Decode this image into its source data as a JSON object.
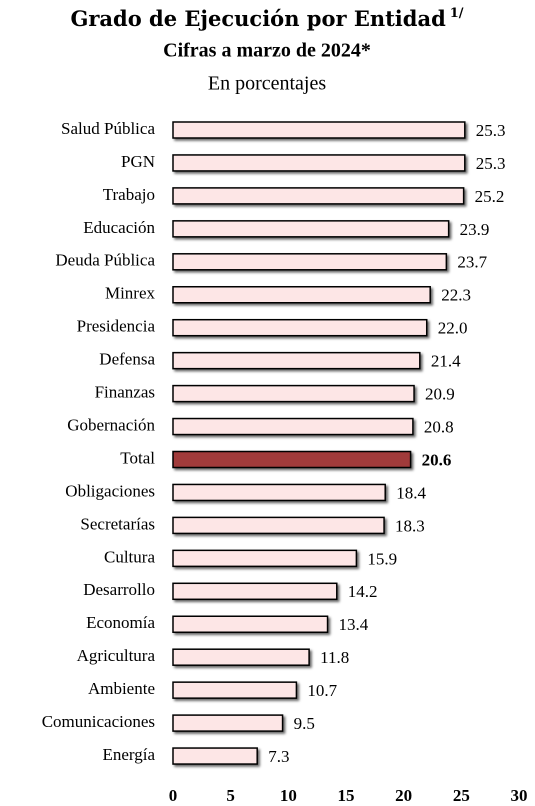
{
  "chart_data": {
    "type": "barh",
    "title": "Grado de Ejecución por Entidad",
    "title_note": "1/",
    "subtitle": "Cifras a marzo de 2024*",
    "unit_label": "En porcentajes",
    "categories": [
      "Salud Pública",
      "PGN",
      "Trabajo",
      "Educación",
      "Deuda Pública",
      "Minrex",
      "Presidencia",
      "Defensa",
      "Finanzas",
      "Gobernación",
      "Total",
      "Obligaciones",
      "Secretarías",
      "Cultura",
      "Desarrollo",
      "Economía",
      "Agricultura",
      "Ambiente",
      "Comunicaciones",
      "Energía"
    ],
    "values": [
      25.3,
      25.3,
      25.2,
      23.9,
      23.7,
      22.3,
      22.0,
      21.4,
      20.9,
      20.8,
      20.6,
      18.4,
      18.3,
      15.9,
      14.2,
      13.4,
      11.8,
      10.7,
      9.5,
      7.3
    ],
    "value_labels": [
      "25.3",
      "25.3",
      "25.2",
      "23.9",
      "23.7",
      "22.3",
      "22.0",
      "21.4",
      "20.9",
      "20.8",
      "20.6",
      "18.4",
      "18.3",
      "15.9",
      "14.2",
      "13.4",
      "11.8",
      "10.7",
      "9.5",
      "7.3"
    ],
    "color": "#fde6e6",
    "highlight": "Total",
    "highlight_color": "#a13a3a",
    "xlim": [
      0,
      30
    ],
    "xticks": [
      0,
      5,
      10,
      15,
      20,
      25,
      30
    ],
    "grid": false
  }
}
